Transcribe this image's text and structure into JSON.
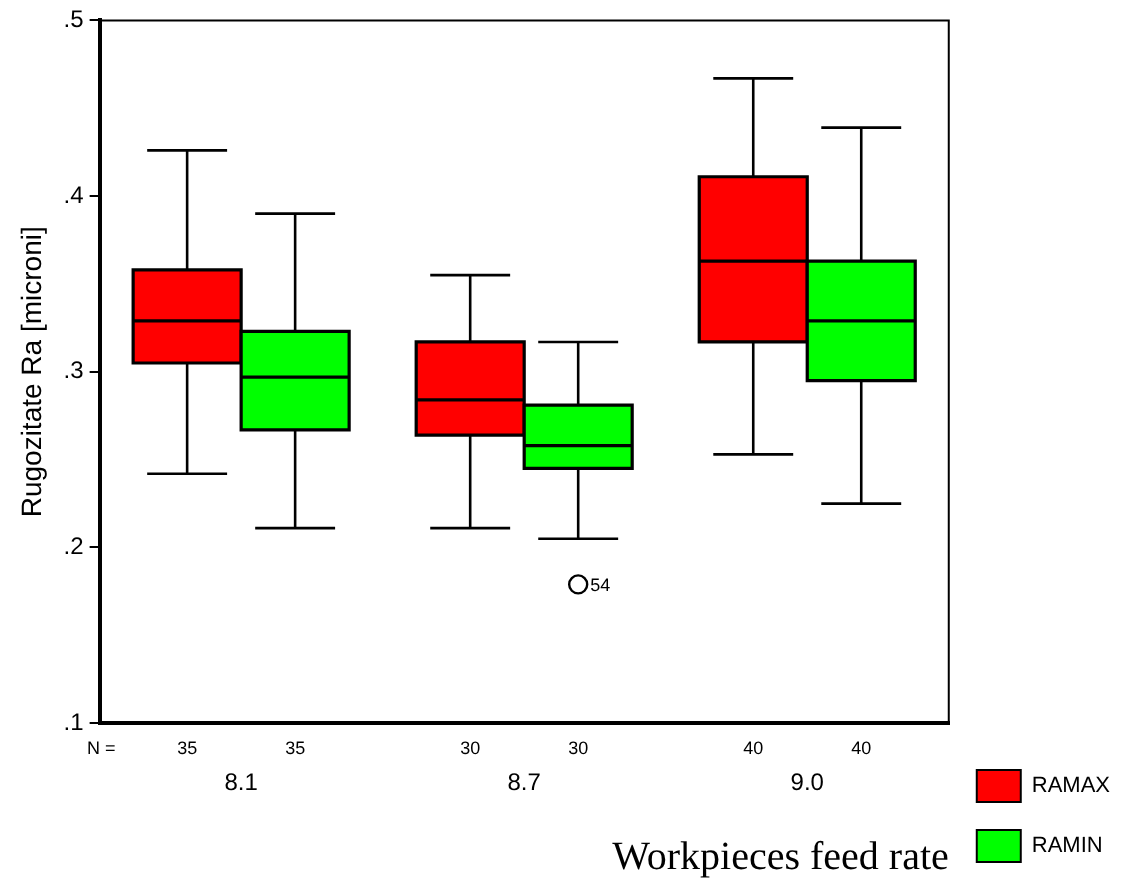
{
  "chart_data": {
    "type": "box",
    "xlabel": "Workpieces feed rate",
    "ylabel": "Rugozitate Ra [microni]",
    "categories": [
      "8.1",
      "8.7",
      "9.0"
    ],
    "series": [
      {
        "name": "RAMAX",
        "color": "#ff0000",
        "boxes": [
          {
            "low": 0.242,
            "q1": 0.305,
            "median": 0.329,
            "q3": 0.358,
            "high": 0.426
          },
          {
            "low": 0.211,
            "q1": 0.264,
            "median": 0.284,
            "q3": 0.317,
            "high": 0.355
          },
          {
            "low": 0.253,
            "q1": 0.317,
            "median": 0.363,
            "q3": 0.411,
            "high": 0.467
          }
        ]
      },
      {
        "name": "RAMIN",
        "color": "#00ff00",
        "boxes": [
          {
            "low": 0.211,
            "q1": 0.267,
            "median": 0.297,
            "q3": 0.323,
            "high": 0.39
          },
          {
            "low": 0.205,
            "q1": 0.245,
            "median": 0.258,
            "q3": 0.281,
            "high": 0.317,
            "outliers": [
              0.179
            ]
          },
          {
            "low": 0.225,
            "q1": 0.295,
            "median": 0.329,
            "q3": 0.363,
            "high": 0.439
          }
        ]
      }
    ],
    "ylim": [
      0.1,
      0.5
    ],
    "yticks": [
      {
        "value": 0.1,
        "label": ".1"
      },
      {
        "value": 0.2,
        "label": ".2"
      },
      {
        "value": 0.3,
        "label": ".3"
      },
      {
        "value": 0.4,
        "label": ".4"
      },
      {
        "value": 0.5,
        "label": ".5"
      }
    ],
    "grid": false,
    "legend": "bottom right",
    "annotations": [
      "N =",
      "35",
      "35",
      "30",
      "30",
      "40",
      "40",
      "54"
    ]
  }
}
